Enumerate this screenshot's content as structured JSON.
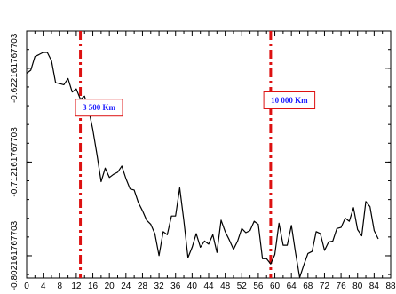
{
  "chart_data": {
    "type": "line",
    "title": "",
    "xlabel": "",
    "ylabel": "",
    "xlim": [
      0,
      88
    ],
    "ylim": [
      -0.8235,
      -0.5865
    ],
    "x_ticks": [
      0,
      4,
      8,
      12,
      16,
      20,
      24,
      28,
      32,
      36,
      40,
      44,
      48,
      52,
      56,
      60,
      64,
      68,
      72,
      76,
      80,
      84,
      88
    ],
    "x_tick_labels": [
      "0",
      "4",
      "8",
      "12",
      "16",
      "20",
      "24",
      "28",
      "32",
      "36",
      "40",
      "44",
      "48",
      "52",
      "56",
      "60",
      "64",
      "68",
      "72",
      "76",
      "80",
      "84",
      "88"
    ],
    "y_ticks": [
      -0.622161767703,
      -0.712161767703,
      -0.802161767703
    ],
    "y_tick_labels": [
      "-0.622161767703",
      "-0.712161767703",
      "-0.802161767703"
    ],
    "grid": false,
    "colors": {
      "line": "#000000",
      "marker": "#dd1111",
      "annotation_text": "#1a1aff",
      "annotation_border": "#dd1111"
    },
    "series": [
      {
        "x": [
          0,
          1,
          2,
          3,
          4,
          5,
          6,
          7,
          8,
          9,
          10,
          11,
          12,
          13,
          14,
          15,
          16,
          17,
          18,
          19,
          20,
          21,
          22,
          23,
          24,
          25,
          26,
          27,
          28,
          29,
          30,
          31,
          32,
          33,
          34,
          35,
          36,
          37,
          38,
          39,
          40,
          41,
          42,
          43,
          44,
          45,
          46,
          47,
          48,
          49,
          50,
          51,
          52,
          53,
          54,
          55,
          56,
          57,
          58,
          59,
          60,
          61,
          62,
          63,
          64,
          65,
          66,
          67,
          68,
          69,
          70,
          71,
          72,
          73,
          74,
          75,
          76,
          77,
          78,
          79,
          80,
          81,
          82,
          83,
          84,
          85
        ],
        "y": [
          -0.627,
          -0.624,
          -0.611,
          -0.609,
          -0.607,
          -0.607,
          -0.615,
          -0.636,
          -0.637,
          -0.638,
          -0.632,
          -0.645,
          -0.642,
          -0.652,
          -0.649,
          -0.662,
          -0.681,
          -0.705,
          -0.731,
          -0.718,
          -0.727,
          -0.724,
          -0.722,
          -0.716,
          -0.728,
          -0.738,
          -0.739,
          -0.751,
          -0.759,
          -0.768,
          -0.772,
          -0.781,
          -0.802,
          -0.779,
          -0.782,
          -0.764,
          -0.764,
          -0.737,
          -0.768,
          -0.804,
          -0.794,
          -0.781,
          -0.794,
          -0.788,
          -0.791,
          -0.782,
          -0.799,
          -0.768,
          -0.779,
          -0.787,
          -0.796,
          -0.788,
          -0.776,
          -0.78,
          -0.778,
          -0.769,
          -0.772,
          -0.805,
          -0.805,
          -0.81,
          -0.801,
          -0.771,
          -0.792,
          -0.792,
          -0.773,
          -0.799,
          -0.823,
          -0.811,
          -0.8,
          -0.798,
          -0.779,
          -0.781,
          -0.797,
          -0.789,
          -0.788,
          -0.776,
          -0.775,
          -0.766,
          -0.769,
          -0.756,
          -0.777,
          -0.783,
          -0.75,
          -0.755,
          -0.778,
          -0.786
        ]
      }
    ],
    "vertical_markers": [
      {
        "x": 13,
        "style": "dash-dot"
      },
      {
        "x": 59,
        "style": "dash-dot"
      }
    ],
    "annotations": [
      {
        "text": "3 500 Km",
        "x": 17.5,
        "y": -0.66
      },
      {
        "text": "10 000 Km",
        "x": 63.5,
        "y": -0.653
      }
    ]
  }
}
